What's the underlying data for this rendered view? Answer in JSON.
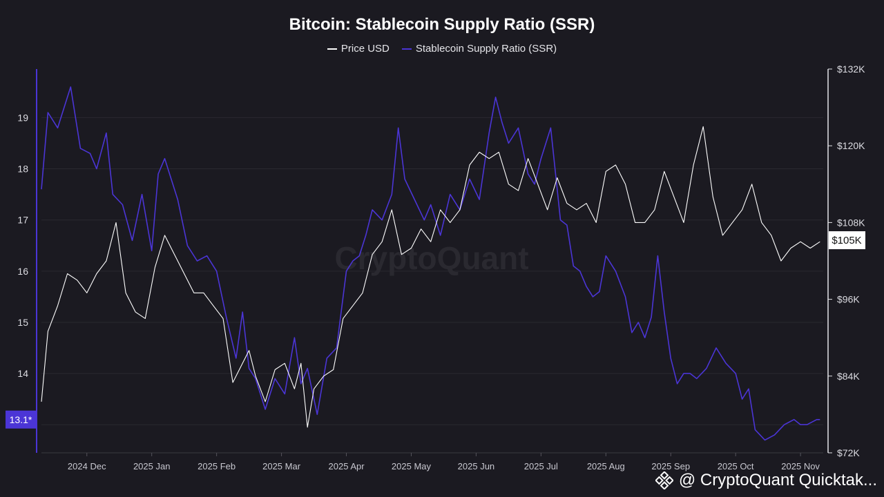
{
  "chart_data": {
    "type": "line",
    "title": "Bitcoin: Stablecoin Supply Ratio (SSR)",
    "legend": [
      {
        "name": "Price USD",
        "color": "#ffffff"
      },
      {
        "name": "Stablecoin Supply Ratio (SSR)",
        "color": "#4b35d6"
      }
    ],
    "x_ticks": [
      "2024 Dec",
      "2025 Jan",
      "2025 Feb",
      "2025 Mar",
      "2025 Apr",
      "2025 May",
      "2025 Jun",
      "2025 Jul",
      "2025 Aug",
      "2025 Sep",
      "2025 Oct",
      "2025 Nov"
    ],
    "left_axis": {
      "ticks": [
        "19",
        "18",
        "17",
        "16",
        "15",
        "14",
        "13"
      ],
      "ylim": [
        12.45,
        19.95
      ]
    },
    "right_axis": {
      "ticks": [
        "$132K",
        "$120K",
        "$108K",
        "$96K",
        "$84K",
        "$72K"
      ],
      "ylim": [
        72,
        132
      ]
    },
    "x_range": [
      0,
      12.05
    ],
    "series": [
      {
        "name": "Stablecoin Supply Ratio (SSR)",
        "axis": "left",
        "color": "#4b35d6",
        "x": [
          0,
          0.1,
          0.25,
          0.45,
          0.6,
          0.75,
          0.85,
          1.0,
          1.1,
          1.25,
          1.4,
          1.55,
          1.7,
          1.8,
          1.9,
          2.0,
          2.1,
          2.25,
          2.4,
          2.55,
          2.7,
          2.85,
          3.0,
          3.1,
          3.2,
          3.3,
          3.45,
          3.6,
          3.75,
          3.9,
          4.0,
          4.1,
          4.25,
          4.4,
          4.55,
          4.7,
          4.8,
          4.9,
          5.0,
          5.1,
          5.25,
          5.4,
          5.5,
          5.6,
          5.75,
          5.9,
          6.0,
          6.15,
          6.3,
          6.45,
          6.6,
          6.75,
          6.9,
          7.0,
          7.1,
          7.2,
          7.35,
          7.5,
          7.6,
          7.7,
          7.85,
          8.0,
          8.1,
          8.2,
          8.3,
          8.4,
          8.5,
          8.6,
          8.7,
          8.85,
          9.0,
          9.1,
          9.2,
          9.3,
          9.4,
          9.5,
          9.6,
          9.7,
          9.8,
          9.9,
          10.0,
          10.1,
          10.25,
          10.4,
          10.55,
          10.7,
          10.8,
          10.9,
          11.0,
          11.15,
          11.3,
          11.45,
          11.6,
          11.7,
          11.8,
          11.95,
          12.0
        ],
        "values": [
          17.6,
          19.1,
          18.8,
          19.6,
          18.4,
          18.3,
          18.0,
          18.7,
          17.5,
          17.3,
          16.6,
          17.5,
          16.4,
          17.9,
          18.2,
          17.8,
          17.4,
          16.5,
          16.2,
          16.3,
          16.0,
          15.1,
          14.3,
          15.2,
          14.1,
          13.9,
          13.3,
          13.9,
          13.6,
          14.7,
          13.8,
          14.1,
          13.2,
          14.3,
          14.5,
          16.0,
          16.2,
          16.3,
          16.7,
          17.2,
          17.0,
          17.5,
          18.8,
          17.8,
          17.4,
          17.0,
          17.3,
          16.7,
          17.5,
          17.2,
          17.8,
          17.4,
          18.7,
          19.4,
          18.9,
          18.5,
          18.8,
          17.9,
          17.7,
          18.2,
          18.8,
          17.0,
          16.9,
          16.1,
          16.0,
          15.7,
          15.5,
          15.6,
          16.3,
          16.0,
          15.5,
          14.8,
          15.0,
          14.7,
          15.1,
          16.3,
          15.2,
          14.3,
          13.8,
          14.0,
          14.0,
          13.9,
          14.1,
          14.5,
          14.2,
          14.0,
          13.5,
          13.7,
          12.9,
          12.7,
          12.8,
          13.0,
          13.1,
          13.0,
          13.0,
          13.1,
          13.1
        ]
      },
      {
        "name": "Price USD",
        "axis": "right",
        "color": "#ffffff",
        "x": [
          0,
          0.1,
          0.25,
          0.4,
          0.55,
          0.7,
          0.85,
          1.0,
          1.15,
          1.3,
          1.45,
          1.6,
          1.75,
          1.9,
          2.05,
          2.2,
          2.35,
          2.5,
          2.65,
          2.8,
          2.95,
          3.1,
          3.2,
          3.3,
          3.45,
          3.6,
          3.75,
          3.9,
          4.0,
          4.1,
          4.2,
          4.35,
          4.5,
          4.65,
          4.8,
          4.95,
          5.1,
          5.25,
          5.4,
          5.55,
          5.7,
          5.85,
          6.0,
          6.15,
          6.3,
          6.45,
          6.6,
          6.75,
          6.9,
          7.05,
          7.2,
          7.35,
          7.5,
          7.65,
          7.8,
          7.95,
          8.1,
          8.25,
          8.4,
          8.55,
          8.7,
          8.85,
          9.0,
          9.15,
          9.3,
          9.45,
          9.6,
          9.75,
          9.9,
          10.05,
          10.2,
          10.35,
          10.5,
          10.65,
          10.8,
          10.95,
          11.1,
          11.25,
          11.4,
          11.55,
          11.7,
          11.85,
          12.0
        ],
        "values": [
          80,
          91,
          95,
          100,
          99,
          97,
          100,
          102,
          108,
          97,
          94,
          93,
          101,
          106,
          103,
          100,
          97,
          97,
          95,
          93,
          83,
          86,
          88,
          84,
          80,
          85,
          86,
          82,
          86,
          76,
          82,
          84,
          85,
          93,
          95,
          97,
          103,
          105,
          110,
          103,
          104,
          107,
          105,
          110,
          108,
          110,
          117,
          119,
          118,
          119,
          114,
          113,
          118,
          114,
          110,
          115,
          111,
          110,
          111,
          108,
          116,
          117,
          114,
          108,
          108,
          110,
          116,
          112,
          108,
          117,
          123,
          112,
          106,
          108,
          110,
          114,
          108,
          106,
          102,
          104,
          105,
          104,
          105
        ]
      }
    ],
    "current_labels": {
      "left": "13.1*",
      "right": "$105K"
    },
    "watermark_center": "CryptoQuant",
    "watermark_corner": "@ CryptoQuant Quicktak..."
  }
}
